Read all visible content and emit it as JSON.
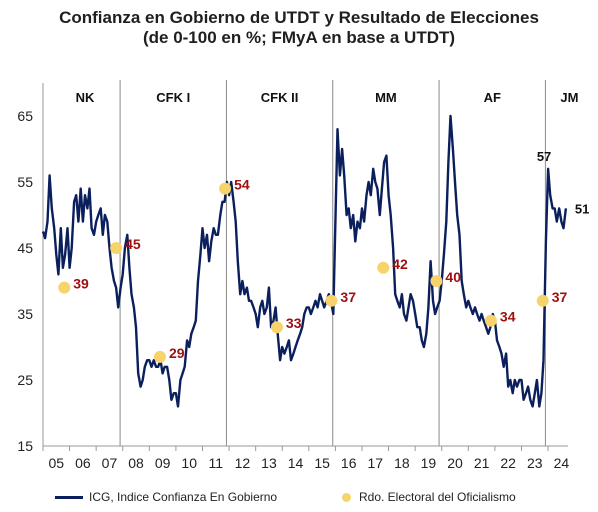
{
  "title_line1": "Confianza en Gobierno de UTDT y Resultado de Elecciones",
  "title_line2": "(de 0-100 en %; FMyA en base a UTDT)",
  "colors": {
    "line": "#0b1f5c",
    "dots": "#f7d36b",
    "dot_labels": "#a01010",
    "separators": "#8a8a8a"
  },
  "chart_data": {
    "type": "line",
    "title": "Confianza en Gobierno de UTDT y Resultado de Elecciones (de 0-100 en %; FMyA en base a UTDT)",
    "xlabel": "",
    "ylabel": "",
    "xlim": [
      2005,
      2024.75
    ],
    "ylim": [
      15,
      70
    ],
    "yticks": [
      15,
      25,
      35,
      45,
      55,
      65
    ],
    "xticks": [
      {
        "label": "05",
        "x": 2005.0
      },
      {
        "label": "06",
        "x": 2006.0
      },
      {
        "label": "07",
        "x": 2007.0
      },
      {
        "label": "08",
        "x": 2008.0
      },
      {
        "label": "09",
        "x": 2009.0
      },
      {
        "label": "10",
        "x": 2010.0
      },
      {
        "label": "11",
        "x": 2011.0
      },
      {
        "label": "12",
        "x": 2012.0
      },
      {
        "label": "13",
        "x": 2013.0
      },
      {
        "label": "14",
        "x": 2014.0
      },
      {
        "label": "15",
        "x": 2015.0
      },
      {
        "label": "16",
        "x": 2016.0
      },
      {
        "label": "17",
        "x": 2017.0
      },
      {
        "label": "18",
        "x": 2018.0
      },
      {
        "label": "19",
        "x": 2019.0
      },
      {
        "label": "20",
        "x": 2020.0
      },
      {
        "label": "21",
        "x": 2021.0
      },
      {
        "label": "22",
        "x": 2022.0
      },
      {
        "label": "23",
        "x": 2023.0
      },
      {
        "label": "24",
        "x": 2024.0
      }
    ],
    "periods": [
      {
        "label": "NK",
        "start": 2005.0,
        "end": 2007.9
      },
      {
        "label": "CFK I",
        "start": 2007.9,
        "end": 2011.9
      },
      {
        "label": "CFK II",
        "start": 2011.9,
        "end": 2015.9
      },
      {
        "label": "MM",
        "start": 2015.9,
        "end": 2019.9
      },
      {
        "label": "AF",
        "start": 2019.9,
        "end": 2023.9
      },
      {
        "label": "JM",
        "start": 2023.9,
        "end": 2024.75
      }
    ],
    "period_separators": [
      2007.9,
      2011.9,
      2015.9,
      2019.9,
      2023.9
    ],
    "series": [
      {
        "name": "ICG, Indice Confianza En Gobierno",
        "kind": "line",
        "points": [
          [
            2005.0,
            47.5
          ],
          [
            2005.08,
            46.5
          ],
          [
            2005.17,
            49
          ],
          [
            2005.25,
            56
          ],
          [
            2005.33,
            51
          ],
          [
            2005.42,
            48
          ],
          [
            2005.5,
            44
          ],
          [
            2005.58,
            41
          ],
          [
            2005.67,
            48
          ],
          [
            2005.75,
            42
          ],
          [
            2005.83,
            44
          ],
          [
            2005.92,
            48
          ],
          [
            2006.0,
            42
          ],
          [
            2006.08,
            45
          ],
          [
            2006.17,
            52
          ],
          [
            2006.25,
            53
          ],
          [
            2006.33,
            49
          ],
          [
            2006.42,
            54
          ],
          [
            2006.5,
            49
          ],
          [
            2006.58,
            53
          ],
          [
            2006.67,
            51
          ],
          [
            2006.75,
            54
          ],
          [
            2006.83,
            48
          ],
          [
            2006.92,
            47
          ],
          [
            2007.0,
            49
          ],
          [
            2007.08,
            50
          ],
          [
            2007.17,
            51
          ],
          [
            2007.25,
            47
          ],
          [
            2007.33,
            50
          ],
          [
            2007.42,
            49
          ],
          [
            2007.5,
            45
          ],
          [
            2007.58,
            42
          ],
          [
            2007.67,
            40
          ],
          [
            2007.75,
            39
          ],
          [
            2007.83,
            36
          ],
          [
            2007.92,
            39
          ],
          [
            2008.0,
            41
          ],
          [
            2008.08,
            45
          ],
          [
            2008.17,
            47
          ],
          [
            2008.25,
            42
          ],
          [
            2008.33,
            38
          ],
          [
            2008.42,
            36
          ],
          [
            2008.5,
            33
          ],
          [
            2008.58,
            26
          ],
          [
            2008.67,
            24
          ],
          [
            2008.75,
            25
          ],
          [
            2008.83,
            27
          ],
          [
            2008.92,
            28
          ],
          [
            2009.0,
            28
          ],
          [
            2009.08,
            27
          ],
          [
            2009.17,
            28
          ],
          [
            2009.25,
            27
          ],
          [
            2009.33,
            27
          ],
          [
            2009.42,
            28
          ],
          [
            2009.5,
            26
          ],
          [
            2009.58,
            27
          ],
          [
            2009.67,
            27
          ],
          [
            2009.75,
            25
          ],
          [
            2009.83,
            22
          ],
          [
            2009.92,
            23
          ],
          [
            2010.0,
            23
          ],
          [
            2010.08,
            21
          ],
          [
            2010.17,
            25
          ],
          [
            2010.25,
            26
          ],
          [
            2010.33,
            27
          ],
          [
            2010.42,
            31
          ],
          [
            2010.5,
            30
          ],
          [
            2010.58,
            32
          ],
          [
            2010.67,
            33
          ],
          [
            2010.75,
            34
          ],
          [
            2010.83,
            40
          ],
          [
            2010.92,
            44
          ],
          [
            2011.0,
            48
          ],
          [
            2011.08,
            45
          ],
          [
            2011.17,
            47
          ],
          [
            2011.25,
            43
          ],
          [
            2011.33,
            46
          ],
          [
            2011.42,
            48
          ],
          [
            2011.5,
            47
          ],
          [
            2011.58,
            47
          ],
          [
            2011.67,
            50
          ],
          [
            2011.75,
            52
          ],
          [
            2011.83,
            52
          ],
          [
            2011.92,
            55
          ],
          [
            2012.0,
            53
          ],
          [
            2012.08,
            55
          ],
          [
            2012.17,
            52
          ],
          [
            2012.25,
            49
          ],
          [
            2012.33,
            43
          ],
          [
            2012.42,
            38
          ],
          [
            2012.5,
            40
          ],
          [
            2012.58,
            38
          ],
          [
            2012.67,
            39
          ],
          [
            2012.75,
            37
          ],
          [
            2012.83,
            37
          ],
          [
            2012.92,
            36
          ],
          [
            2013.0,
            35
          ],
          [
            2013.08,
            33
          ],
          [
            2013.17,
            36
          ],
          [
            2013.25,
            37
          ],
          [
            2013.33,
            35
          ],
          [
            2013.42,
            36
          ],
          [
            2013.5,
            39
          ],
          [
            2013.58,
            33
          ],
          [
            2013.67,
            34
          ],
          [
            2013.75,
            36
          ],
          [
            2013.83,
            32
          ],
          [
            2013.92,
            28
          ],
          [
            2014.0,
            30
          ],
          [
            2014.08,
            29
          ],
          [
            2014.17,
            30
          ],
          [
            2014.25,
            31
          ],
          [
            2014.33,
            28
          ],
          [
            2014.42,
            29
          ],
          [
            2014.5,
            30
          ],
          [
            2014.58,
            31
          ],
          [
            2014.67,
            32
          ],
          [
            2014.75,
            33
          ],
          [
            2014.83,
            35
          ],
          [
            2014.92,
            36
          ],
          [
            2015.0,
            36
          ],
          [
            2015.08,
            35
          ],
          [
            2015.17,
            36
          ],
          [
            2015.25,
            37
          ],
          [
            2015.33,
            36
          ],
          [
            2015.42,
            38
          ],
          [
            2015.5,
            37
          ],
          [
            2015.58,
            36
          ],
          [
            2015.67,
            37
          ],
          [
            2015.75,
            38
          ],
          [
            2015.83,
            37
          ],
          [
            2015.92,
            35
          ],
          [
            2016.0,
            49
          ],
          [
            2016.08,
            63
          ],
          [
            2016.17,
            56
          ],
          [
            2016.25,
            60
          ],
          [
            2016.33,
            56
          ],
          [
            2016.42,
            50
          ],
          [
            2016.5,
            51
          ],
          [
            2016.58,
            48
          ],
          [
            2016.67,
            50
          ],
          [
            2016.75,
            46
          ],
          [
            2016.83,
            49
          ],
          [
            2016.92,
            48
          ],
          [
            2017.0,
            51
          ],
          [
            2017.08,
            49
          ],
          [
            2017.17,
            53
          ],
          [
            2017.25,
            55
          ],
          [
            2017.33,
            53
          ],
          [
            2017.42,
            57
          ],
          [
            2017.5,
            55
          ],
          [
            2017.58,
            54
          ],
          [
            2017.67,
            50
          ],
          [
            2017.75,
            54
          ],
          [
            2017.83,
            58
          ],
          [
            2017.92,
            59
          ],
          [
            2018.0,
            53
          ],
          [
            2018.08,
            50
          ],
          [
            2018.17,
            45
          ],
          [
            2018.25,
            38
          ],
          [
            2018.33,
            37
          ],
          [
            2018.42,
            36
          ],
          [
            2018.5,
            38
          ],
          [
            2018.58,
            35
          ],
          [
            2018.67,
            34
          ],
          [
            2018.75,
            36
          ],
          [
            2018.83,
            38
          ],
          [
            2018.92,
            37
          ],
          [
            2019.0,
            35
          ],
          [
            2019.08,
            33
          ],
          [
            2019.17,
            33
          ],
          [
            2019.25,
            31
          ],
          [
            2019.33,
            30
          ],
          [
            2019.42,
            32
          ],
          [
            2019.5,
            36
          ],
          [
            2019.58,
            43
          ],
          [
            2019.67,
            37
          ],
          [
            2019.75,
            35
          ],
          [
            2019.83,
            36
          ],
          [
            2019.92,
            37
          ],
          [
            2020.0,
            40
          ],
          [
            2020.08,
            44
          ],
          [
            2020.17,
            49
          ],
          [
            2020.25,
            58
          ],
          [
            2020.33,
            65
          ],
          [
            2020.42,
            60
          ],
          [
            2020.5,
            55
          ],
          [
            2020.58,
            50
          ],
          [
            2020.67,
            47
          ],
          [
            2020.75,
            40
          ],
          [
            2020.83,
            38
          ],
          [
            2020.92,
            36
          ],
          [
            2021.0,
            37
          ],
          [
            2021.08,
            36
          ],
          [
            2021.17,
            35
          ],
          [
            2021.25,
            36
          ],
          [
            2021.33,
            35
          ],
          [
            2021.42,
            34
          ],
          [
            2021.5,
            35
          ],
          [
            2021.58,
            34
          ],
          [
            2021.67,
            33
          ],
          [
            2021.75,
            32
          ],
          [
            2021.83,
            33
          ],
          [
            2021.92,
            35
          ],
          [
            2022.0,
            34
          ],
          [
            2022.08,
            31
          ],
          [
            2022.17,
            30
          ],
          [
            2022.25,
            29
          ],
          [
            2022.33,
            27
          ],
          [
            2022.42,
            29
          ],
          [
            2022.5,
            24
          ],
          [
            2022.58,
            25
          ],
          [
            2022.67,
            23
          ],
          [
            2022.75,
            25
          ],
          [
            2022.83,
            24
          ],
          [
            2022.92,
            25
          ],
          [
            2023.0,
            25
          ],
          [
            2023.08,
            22
          ],
          [
            2023.17,
            23
          ],
          [
            2023.25,
            24
          ],
          [
            2023.33,
            22
          ],
          [
            2023.42,
            21
          ],
          [
            2023.5,
            23
          ],
          [
            2023.58,
            25
          ],
          [
            2023.67,
            21
          ],
          [
            2023.75,
            23
          ],
          [
            2023.83,
            28
          ],
          [
            2023.92,
            46
          ],
          [
            2024.0,
            57
          ],
          [
            2024.08,
            53
          ],
          [
            2024.17,
            51
          ],
          [
            2024.25,
            51
          ],
          [
            2024.33,
            49
          ],
          [
            2024.42,
            51
          ],
          [
            2024.5,
            49
          ],
          [
            2024.58,
            48
          ],
          [
            2024.67,
            51
          ]
        ]
      },
      {
        "name": "Rdo. Electoral del Oficialismo",
        "kind": "points",
        "points": [
          {
            "x": 2005.8,
            "y": 39,
            "label": "39"
          },
          {
            "x": 2007.75,
            "y": 45,
            "label": "45"
          },
          {
            "x": 2009.4,
            "y": 28.5,
            "label": "29"
          },
          {
            "x": 2011.85,
            "y": 54,
            "label": "54"
          },
          {
            "x": 2013.8,
            "y": 33,
            "label": "33"
          },
          {
            "x": 2015.85,
            "y": 37,
            "label": "37"
          },
          {
            "x": 2017.8,
            "y": 42,
            "label": "42"
          },
          {
            "x": 2019.8,
            "y": 40,
            "label": "40"
          },
          {
            "x": 2021.85,
            "y": 34,
            "label": "34"
          },
          {
            "x": 2023.8,
            "y": 37,
            "label": "37"
          }
        ]
      }
    ],
    "annotations": [
      {
        "text": "57",
        "x": 2024.0,
        "y": 57
      },
      {
        "text": "51",
        "x": 2024.67,
        "y": 51
      }
    ],
    "legend": {
      "position": "bottom",
      "entries": [
        "ICG, Indice Confianza En Gobierno",
        "Rdo. Electoral del Oficialismo"
      ]
    },
    "grid": false
  }
}
